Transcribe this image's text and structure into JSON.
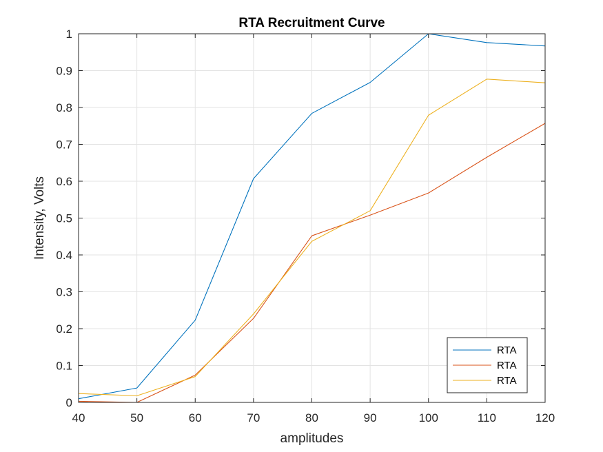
{
  "chart_data": {
    "type": "line",
    "title": "RTA Recruitment Curve",
    "xlabel": "amplitudes",
    "ylabel": "Intensity, Volts",
    "xlim": [
      40,
      120
    ],
    "ylim": [
      0,
      1
    ],
    "x_ticks": [
      "40",
      "50",
      "60",
      "70",
      "80",
      "90",
      "100",
      "110",
      "120"
    ],
    "y_ticks": [
      "0",
      "0.1",
      "0.2",
      "0.3",
      "0.4",
      "0.5",
      "0.6",
      "0.7",
      "0.8",
      "0.9",
      "1"
    ],
    "grid": true,
    "legend_position": "bottom-right",
    "x": [
      40,
      50,
      60,
      70,
      80,
      90,
      100,
      110,
      120
    ],
    "series": [
      {
        "name": "RTA",
        "color": "#0072BD",
        "values": [
          0.01,
          0.039,
          0.223,
          0.607,
          0.784,
          0.868,
          1.0,
          0.976,
          0.967
        ]
      },
      {
        "name": "RTA",
        "color": "#D95319",
        "values": [
          0.003,
          0.0,
          0.074,
          0.228,
          0.452,
          0.508,
          0.568,
          0.665,
          0.757
        ]
      },
      {
        "name": "RTA",
        "color": "#EDB120",
        "values": [
          0.024,
          0.018,
          0.07,
          0.24,
          0.437,
          0.52,
          0.779,
          0.877,
          0.867
        ]
      }
    ]
  }
}
